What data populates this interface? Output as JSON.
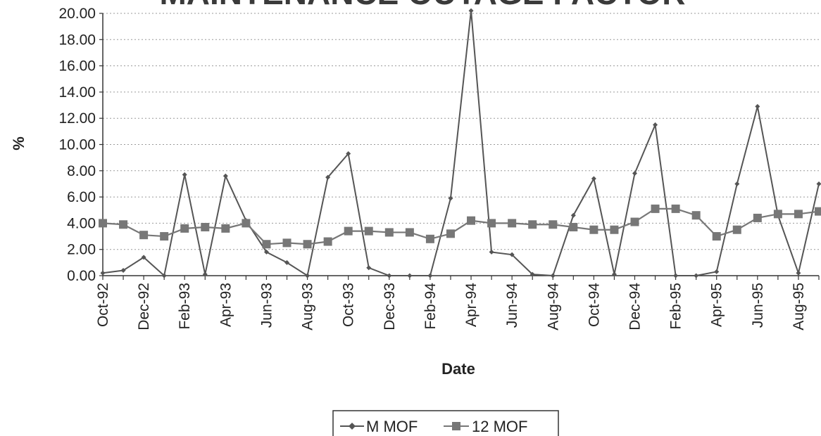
{
  "chart_data": {
    "type": "line",
    "title": "MAINTENANCE OUTAGE FACTOR",
    "xlabel": "Date",
    "ylabel": "%",
    "ylim": [
      0,
      20
    ],
    "y_ticks": [
      "0.00",
      "2.00",
      "4.00",
      "6.00",
      "8.00",
      "10.00",
      "12.00",
      "14.00",
      "16.00",
      "18.00",
      "20.00"
    ],
    "grid": "horizontal dotted",
    "legend_position": "bottom-center",
    "x": [
      "Oct-92",
      "Nov-92",
      "Dec-92",
      "Jan-93",
      "Feb-93",
      "Mar-93",
      "Apr-93",
      "May-93",
      "Jun-93",
      "Jul-93",
      "Aug-93",
      "Sep-93",
      "Oct-93",
      "Nov-93",
      "Dec-93",
      "Jan-94",
      "Feb-94",
      "Mar-94",
      "Apr-94",
      "May-94",
      "Jun-94",
      "Jul-94",
      "Aug-94",
      "Sep-94",
      "Oct-94",
      "Nov-94",
      "Dec-94",
      "Jan-95",
      "Feb-95",
      "Mar-95",
      "Apr-95",
      "May-95",
      "Jun-95",
      "Jul-95",
      "Aug-95",
      "Sep-95"
    ],
    "x_tick_labels": [
      "Oct-92",
      "Dec-92",
      "Feb-93",
      "Apr-93",
      "Jun-93",
      "Aug-93",
      "Oct-93",
      "Dec-93",
      "Feb-94",
      "Apr-94",
      "Jun-94",
      "Aug-94",
      "Oct-94",
      "Dec-94",
      "Feb-95",
      "Apr-95",
      "Jun-95",
      "Aug-95"
    ],
    "series": [
      {
        "name": "M MOF",
        "marker": "diamond",
        "color": "#555555",
        "values": [
          0.2,
          0.4,
          1.4,
          0.0,
          7.7,
          0.1,
          7.6,
          4.2,
          1.8,
          1.0,
          0.0,
          7.5,
          9.3,
          0.6,
          0.0,
          0.0,
          0.0,
          5.9,
          20.2,
          1.8,
          1.6,
          0.1,
          0.0,
          4.6,
          7.4,
          0.1,
          7.8,
          11.5,
          0.0,
          0.0,
          0.3,
          7.0,
          12.9,
          4.6,
          0.2,
          7.0
        ]
      },
      {
        "name": "12 MOF",
        "marker": "square",
        "color": "#777777",
        "values": [
          4.0,
          3.9,
          3.1,
          3.0,
          3.6,
          3.7,
          3.6,
          4.0,
          2.4,
          2.5,
          2.4,
          2.6,
          3.4,
          3.4,
          3.3,
          3.3,
          2.8,
          3.2,
          4.2,
          4.0,
          4.0,
          3.9,
          3.9,
          3.7,
          3.5,
          3.5,
          4.1,
          5.1,
          5.1,
          4.6,
          3.0,
          3.5,
          4.4,
          4.7,
          4.7,
          4.9
        ]
      }
    ]
  }
}
